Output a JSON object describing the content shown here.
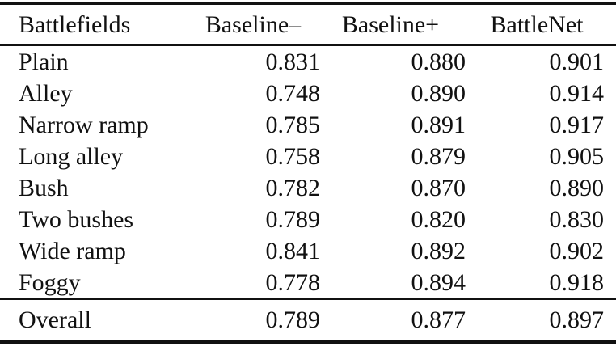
{
  "table": {
    "columns": [
      "Battlefields",
      "Baseline–",
      "Baseline+",
      "BattleNet"
    ],
    "rows": [
      {
        "label": "Plain",
        "values": [
          "0.831",
          "0.880",
          "0.901"
        ]
      },
      {
        "label": "Alley",
        "values": [
          "0.748",
          "0.890",
          "0.914"
        ]
      },
      {
        "label": "Narrow ramp",
        "values": [
          "0.785",
          "0.891",
          "0.917"
        ]
      },
      {
        "label": "Long alley",
        "values": [
          "0.758",
          "0.879",
          "0.905"
        ]
      },
      {
        "label": "Bush",
        "values": [
          "0.782",
          "0.870",
          "0.890"
        ]
      },
      {
        "label": "Two bushes",
        "values": [
          "0.789",
          "0.820",
          "0.830"
        ]
      },
      {
        "label": "Wide ramp",
        "values": [
          "0.841",
          "0.892",
          "0.902"
        ]
      },
      {
        "label": "Foggy",
        "values": [
          "0.778",
          "0.894",
          "0.918"
        ]
      }
    ],
    "footer": {
      "label": "Overall",
      "values": [
        "0.789",
        "0.877",
        "0.897"
      ]
    }
  },
  "colors": {
    "text": "#111111",
    "rule": "#111111",
    "background": "#ffffff"
  }
}
